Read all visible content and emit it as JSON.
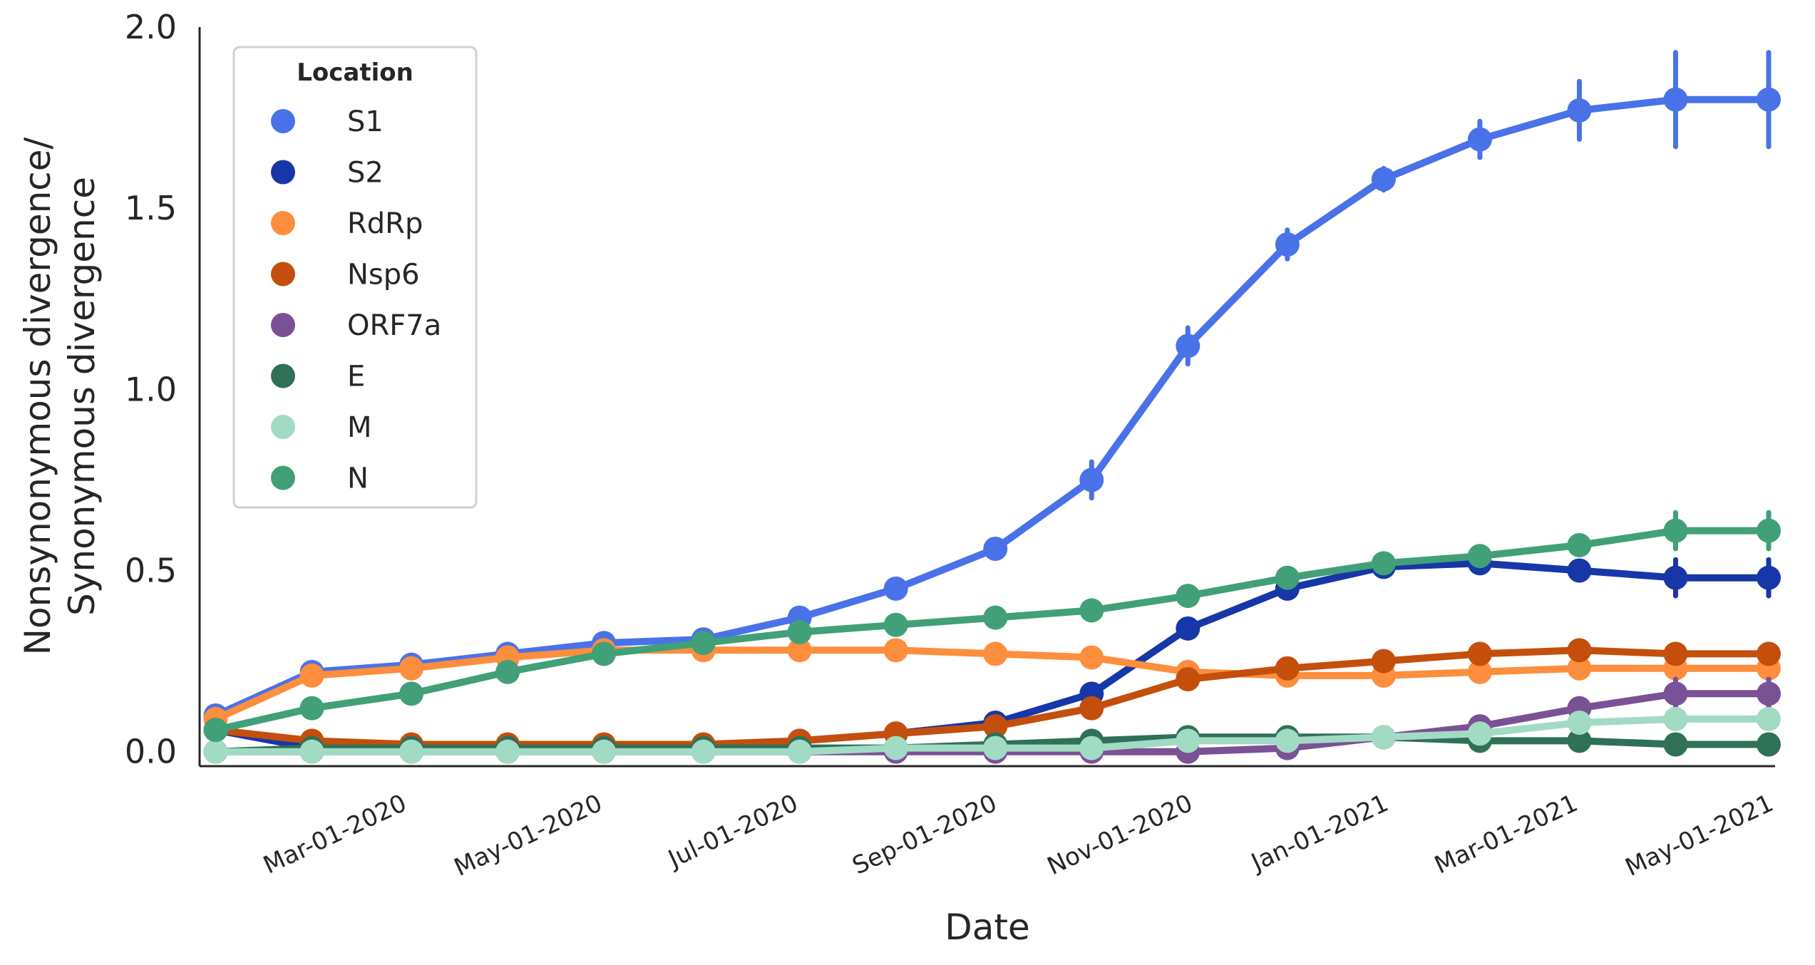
{
  "chart_data": {
    "type": "line",
    "xlabel": "Date",
    "ylabel_line1": "Nonsynonymous divergence/",
    "ylabel_line2": "Synonymous divergence",
    "ylim": [
      -0.04,
      2.0
    ],
    "yticks": [
      0.0,
      0.5,
      1.0,
      1.5,
      2.0
    ],
    "ytick_labels": [
      "0.0",
      "0.5",
      "1.0",
      "1.5",
      "2.0"
    ],
    "xlim": [
      "2019-12-27",
      "2021-05-01"
    ],
    "xtick_dates": [
      "2020-03-01",
      "2020-05-01",
      "2020-07-01",
      "2020-09-01",
      "2020-11-01",
      "2021-01-01",
      "2021-03-01",
      "2021-05-01"
    ],
    "xtick_labels": [
      "Mar-01-2020",
      "May-01-2020",
      "Jul-01-2020",
      "Sep-01-2020",
      "Nov-01-2020",
      "Jan-01-2021",
      "Mar-01-2021",
      "May-01-2021"
    ],
    "x": [
      "2020-01-01",
      "2020-01-31",
      "2020-03-02",
      "2020-04-01",
      "2020-05-01",
      "2020-06-01",
      "2020-07-01",
      "2020-07-31",
      "2020-08-31",
      "2020-09-30",
      "2020-10-30",
      "2020-11-30",
      "2020-12-30",
      "2021-01-29",
      "2021-03-01",
      "2021-03-31",
      "2021-04-29"
    ],
    "legend": {
      "title": "Location",
      "placement": "top-left"
    },
    "series": [
      {
        "name": "S1",
        "color": "#4a72e8",
        "values": [
          0.1,
          0.22,
          0.24,
          0.27,
          0.3,
          0.31,
          0.37,
          0.45,
          0.56,
          0.75,
          1.12,
          1.4,
          1.58,
          1.69,
          1.77,
          1.8,
          1.8
        ],
        "err": [
          0,
          0,
          0,
          0,
          0,
          0,
          0,
          0,
          0,
          0.05,
          0.05,
          0.04,
          0.03,
          0.05,
          0.08,
          0.13,
          0.13
        ]
      },
      {
        "name": "S2",
        "color": "#1737a8",
        "values": [
          0.06,
          0.01,
          0.01,
          0.01,
          0.01,
          0.01,
          0.03,
          0.05,
          0.08,
          0.16,
          0.34,
          0.45,
          0.51,
          0.52,
          0.5,
          0.48,
          0.48
        ],
        "err": [
          0,
          0,
          0,
          0,
          0,
          0,
          0,
          0,
          0,
          0,
          0,
          0,
          0,
          0,
          0,
          0.05,
          0.05
        ]
      },
      {
        "name": "RdRp",
        "color": "#fd8e3d",
        "values": [
          0.09,
          0.21,
          0.23,
          0.26,
          0.28,
          0.28,
          0.28,
          0.28,
          0.27,
          0.26,
          0.22,
          0.21,
          0.21,
          0.22,
          0.23,
          0.23,
          0.23
        ]
      },
      {
        "name": "Nsp6",
        "color": "#c44f0c",
        "values": [
          0.06,
          0.03,
          0.02,
          0.02,
          0.02,
          0.02,
          0.03,
          0.05,
          0.07,
          0.12,
          0.2,
          0.23,
          0.25,
          0.27,
          0.28,
          0.27,
          0.27
        ]
      },
      {
        "name": "ORF7a",
        "color": "#7a5195",
        "values": [
          0.0,
          0.0,
          0.0,
          0.0,
          0.0,
          0.0,
          0.0,
          0.0,
          0.0,
          0.0,
          0.0,
          0.01,
          0.04,
          0.07,
          0.12,
          0.16,
          0.16
        ],
        "err": [
          0,
          0,
          0,
          0,
          0,
          0,
          0,
          0,
          0,
          0,
          0,
          0,
          0,
          0,
          0,
          0.04,
          0.04
        ]
      },
      {
        "name": "E",
        "color": "#2e7156",
        "values": [
          0.0,
          0.01,
          0.01,
          0.01,
          0.01,
          0.01,
          0.01,
          0.01,
          0.02,
          0.03,
          0.04,
          0.04,
          0.04,
          0.03,
          0.03,
          0.02,
          0.02
        ]
      },
      {
        "name": "M",
        "color": "#a2dbc4",
        "values": [
          0.0,
          0.0,
          0.0,
          0.0,
          0.0,
          0.0,
          0.0,
          0.01,
          0.01,
          0.01,
          0.03,
          0.03,
          0.04,
          0.05,
          0.08,
          0.09,
          0.09
        ]
      },
      {
        "name": "N",
        "color": "#41a078",
        "values": [
          0.06,
          0.12,
          0.16,
          0.22,
          0.27,
          0.3,
          0.33,
          0.35,
          0.37,
          0.39,
          0.43,
          0.48,
          0.52,
          0.54,
          0.57,
          0.61,
          0.61
        ],
        "err": [
          0,
          0,
          0,
          0,
          0,
          0,
          0,
          0,
          0,
          0,
          0,
          0,
          0,
          0,
          0,
          0.05,
          0.05
        ]
      }
    ]
  }
}
